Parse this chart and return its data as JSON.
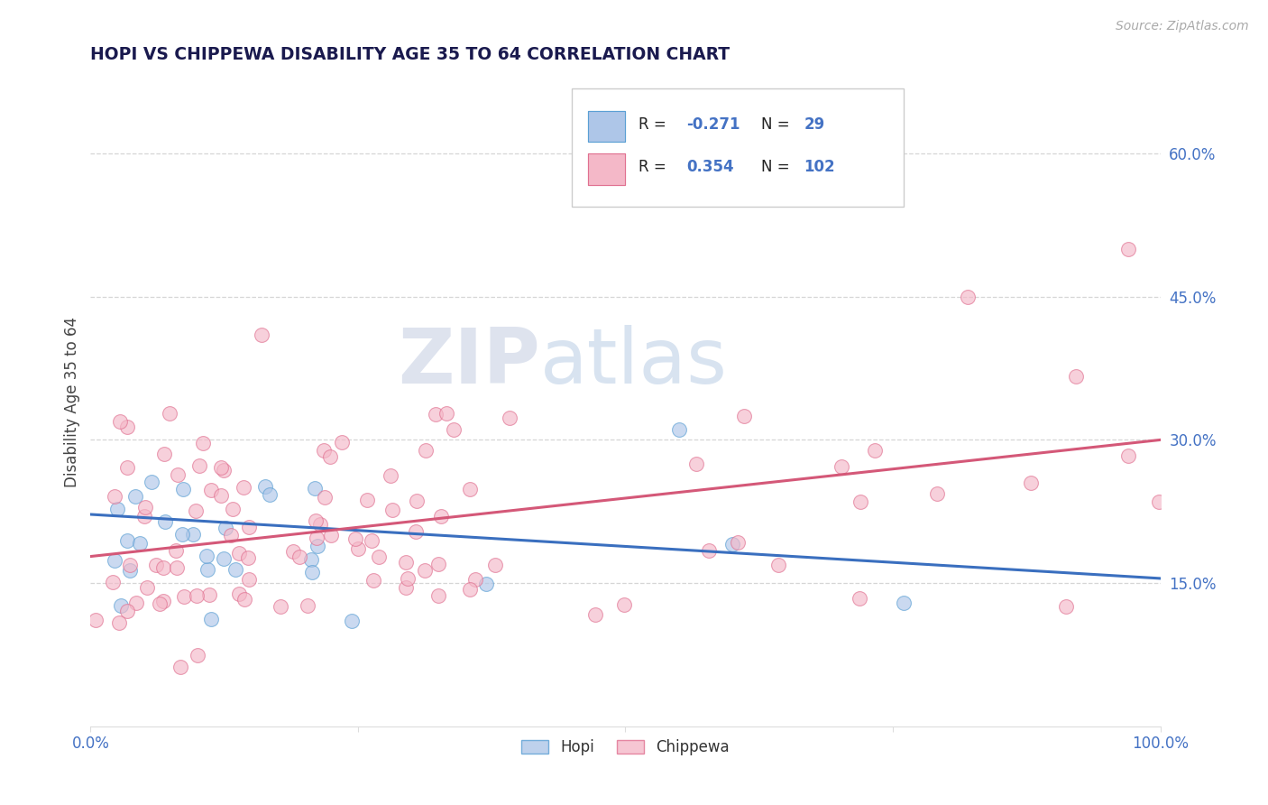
{
  "title": "HOPI VS CHIPPEWA DISABILITY AGE 35 TO 64 CORRELATION CHART",
  "source": "Source: ZipAtlas.com",
  "ylabel": "Disability Age 35 to 64",
  "xlim": [
    0.0,
    1.0
  ],
  "ylim": [
    0.0,
    0.68
  ],
  "yticks": [
    0.15,
    0.3,
    0.45,
    0.6
  ],
  "ytick_labels": [
    "15.0%",
    "30.0%",
    "45.0%",
    "60.0%"
  ],
  "xtick_labels": [
    "0.0%",
    "",
    "",
    "",
    "100.0%"
  ],
  "hopi_R": -0.271,
  "hopi_N": 29,
  "chippewa_R": 0.354,
  "chippewa_N": 102,
  "background_color": "#ffffff",
  "grid_color": "#cccccc",
  "hopi_color": "#aec6e8",
  "chippewa_color": "#f4b8c8",
  "hopi_edge_color": "#5a9fd4",
  "chippewa_edge_color": "#e07090",
  "hopi_line_color": "#3a6fbf",
  "chippewa_line_color": "#d45878",
  "title_color": "#1a1a4e",
  "axis_label_color": "#444444",
  "tick_color": "#4472c4",
  "source_color": "#aaaaaa",
  "legend_r1_val": "-0.271",
  "legend_n1_val": "29",
  "legend_r2_val": "0.354",
  "legend_n2_val": "102",
  "hopi_line_start_y": 0.222,
  "hopi_line_end_y": 0.155,
  "chippewa_line_start_y": 0.178,
  "chippewa_line_end_y": 0.3
}
